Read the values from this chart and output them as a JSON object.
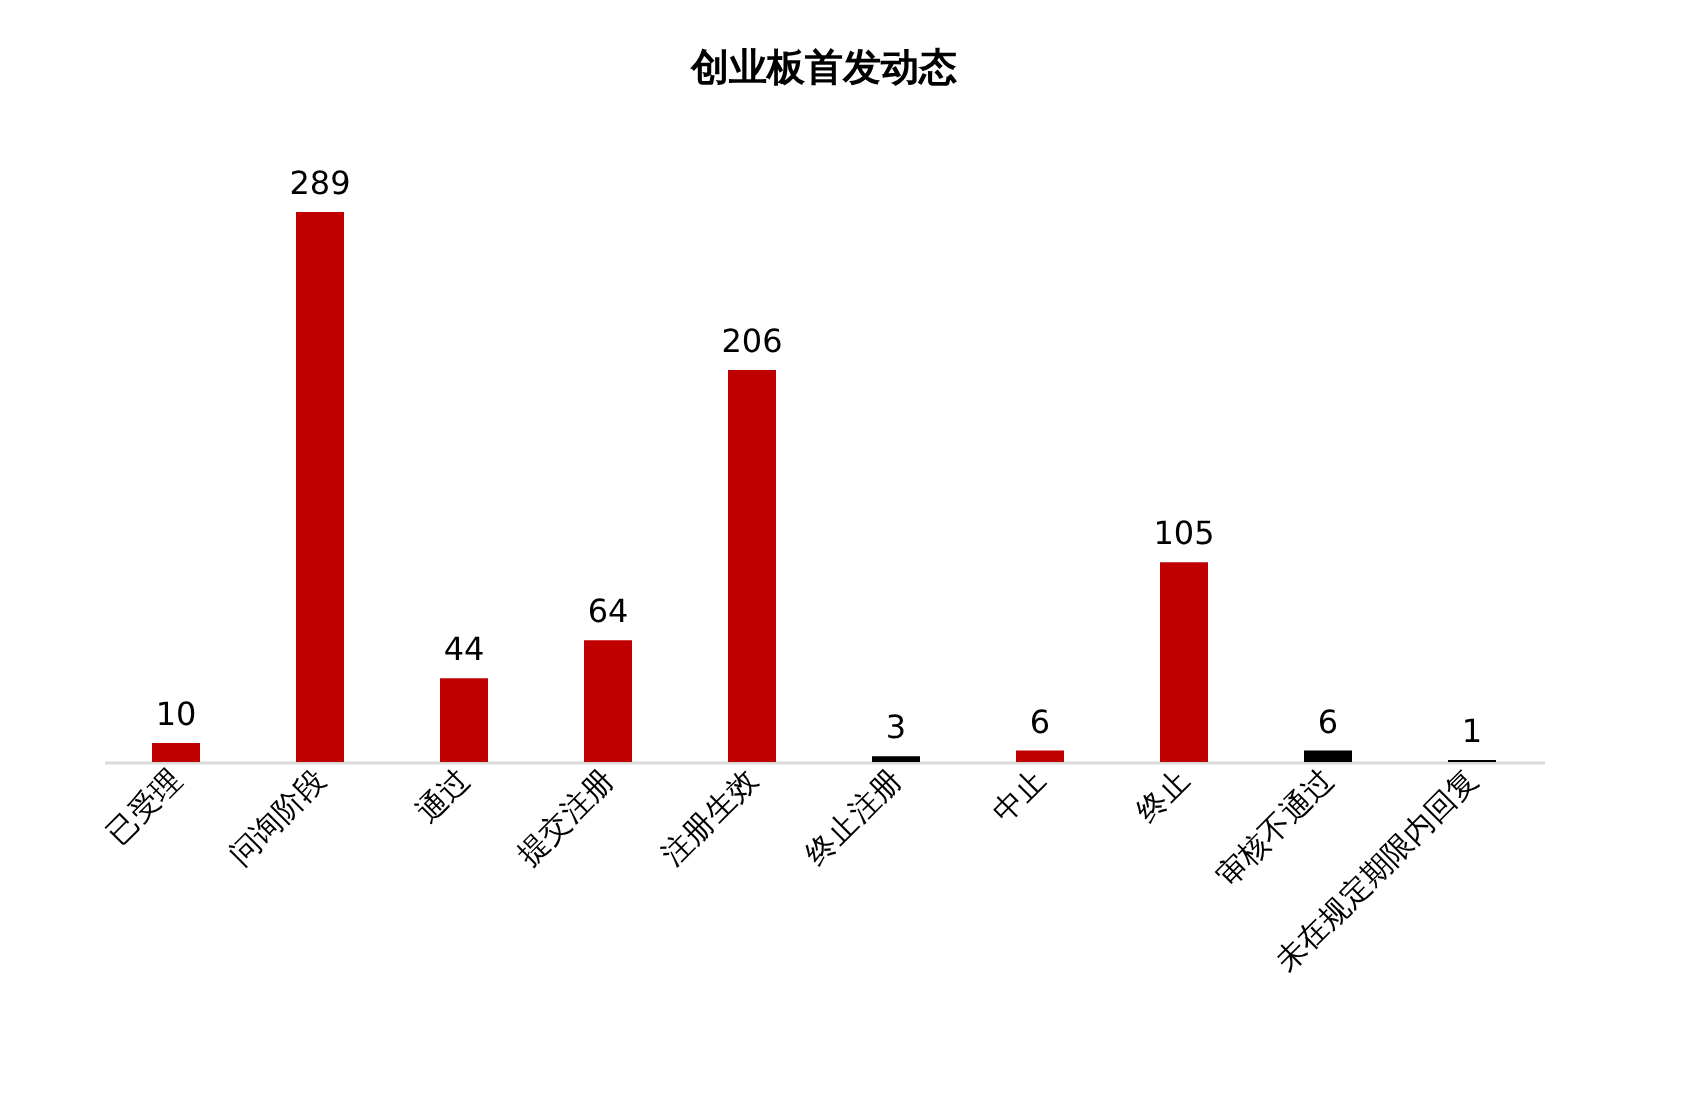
{
  "chart_data": {
    "type": "bar",
    "title": "创业板首发动态",
    "categories": [
      "已受理",
      "问询阶段",
      "通过",
      "提交注册",
      "注册生效",
      "终止注册",
      "中止",
      "终止",
      "审核不通过",
      "未在规定期限内回复"
    ],
    "values": [
      10,
      289,
      44,
      64,
      206,
      3,
      6,
      105,
      6,
      1
    ],
    "colors": [
      "#c00000",
      "#c00000",
      "#c00000",
      "#c00000",
      "#c00000",
      "#000000",
      "#c00000",
      "#c00000",
      "#000000",
      "#000000"
    ],
    "data_labels": true,
    "tick_labels": "x"
  }
}
